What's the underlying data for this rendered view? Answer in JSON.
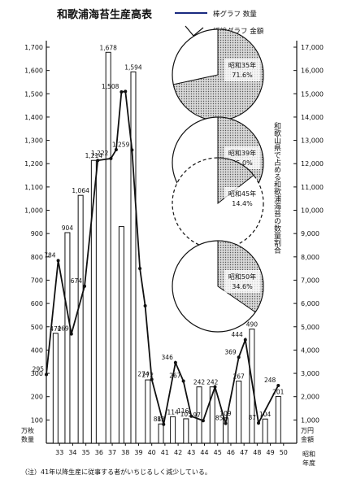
{
  "chart_data": {
    "type": "bar",
    "title": "和歌浦海苔生産高表",
    "legend": {
      "bar": "棒グラフ 数量",
      "line": "折線グラフ 金額"
    },
    "left_axis": {
      "unit_line1": "万枚",
      "unit_line2": "数量",
      "ylim": [
        0,
        1700
      ],
      "ticks": [
        "100",
        "200",
        "300",
        "400",
        "500",
        "600",
        "700",
        "800",
        "900",
        "1,000",
        "1,100",
        "1,200",
        "1,300",
        "1,400",
        "1,500",
        "1,600",
        "1,700"
      ]
    },
    "right_axis": {
      "unit_line1": "万円",
      "unit_line2": "金額",
      "ylim": [
        0,
        17000
      ],
      "ticks": [
        "1,000",
        "2,000",
        "3,000",
        "4,000",
        "5,000",
        "6,000",
        "7,000",
        "8,000",
        "9,000",
        "10,000",
        "11,000",
        "12,000",
        "13,000",
        "14,000",
        "15,000",
        "16,000",
        "17,000"
      ]
    },
    "x_axis_label": [
      "昭和",
      "年度"
    ],
    "categories": [
      "33",
      "34",
      "35",
      "36",
      "37",
      "38",
      "39",
      "40",
      "41",
      "42",
      "43",
      "44",
      "45",
      "46",
      "47",
      "48",
      "49",
      "50"
    ],
    "x_positions": [
      33,
      34,
      35,
      36,
      37,
      38,
      39,
      40,
      41,
      42,
      43,
      44,
      45,
      46,
      47,
      48,
      49,
      50
    ],
    "series": [
      {
        "name": "数量",
        "kind": "bar",
        "points": [
          {
            "x": 32.7,
            "v": 472,
            "label": "472"
          },
          {
            "x": 33.6,
            "v": 904,
            "label": "904"
          },
          {
            "x": 34.6,
            "v": 1064,
            "label": "1,064"
          },
          {
            "x": 35.6,
            "v": 1214,
            "label": "1,214"
          },
          {
            "x": 36.7,
            "v": 1678,
            "label": "1,678"
          },
          {
            "x": 37.7,
            "v": 930,
            "label": ""
          },
          {
            "x": 38.6,
            "v": 1594,
            "label": "1,594"
          },
          {
            "x": 39.7,
            "v": 272,
            "label": "272"
          },
          {
            "x": 40.7,
            "v": 83,
            "label": "83"
          },
          {
            "x": 41.6,
            "v": 114,
            "label": "114"
          },
          {
            "x": 42.6,
            "v": 105,
            "label": "105"
          },
          {
            "x": 43.6,
            "v": 242,
            "label": "242"
          },
          {
            "x": 44.6,
            "v": 242,
            "label": "242"
          },
          {
            "x": 45.6,
            "v": 109,
            "label": "109"
          },
          {
            "x": 46.6,
            "v": 267,
            "label": "267"
          },
          {
            "x": 47.6,
            "v": 490,
            "label": "490"
          },
          {
            "x": 48.6,
            "v": 104,
            "label": "104"
          },
          {
            "x": 49.6,
            "v": 201,
            "label": "201"
          }
        ]
      },
      {
        "name": "金額",
        "kind": "line",
        "points": [
          {
            "x": 32.0,
            "v": 2950,
            "label": "295"
          },
          {
            "x": 32.9,
            "v": 7840,
            "label": "784"
          },
          {
            "x": 33.9,
            "v": 4690,
            "label": "469"
          },
          {
            "x": 34.9,
            "v": 6740,
            "label": "674"
          },
          {
            "x": 35.9,
            "v": 12140,
            "label": ""
          },
          {
            "x": 36.9,
            "v": 12220,
            "label": "1,222"
          },
          {
            "x": 37.3,
            "v": 12600,
            "label": ""
          },
          {
            "x": 37.7,
            "v": 15080,
            "label": "1,508"
          },
          {
            "x": 38.0,
            "v": 15100,
            "label": ""
          },
          {
            "x": 38.5,
            "v": 12590,
            "label": "1,259"
          },
          {
            "x": 39.1,
            "v": 7500,
            "label": ""
          },
          {
            "x": 39.5,
            "v": 5900,
            "label": ""
          },
          {
            "x": 40.0,
            "v": 2740,
            "label": "274"
          },
          {
            "x": 40.9,
            "v": 810,
            "label": "81"
          },
          {
            "x": 41.8,
            "v": 3460,
            "label": "346"
          },
          {
            "x": 42.4,
            "v": 2670,
            "label": "267"
          },
          {
            "x": 43.0,
            "v": 1160,
            "label": "116"
          },
          {
            "x": 43.9,
            "v": 970,
            "label": "97"
          },
          {
            "x": 44.8,
            "v": 2420,
            "label": ""
          },
          {
            "x": 45.6,
            "v": 850,
            "label": "85"
          },
          {
            "x": 46.6,
            "v": 3690,
            "label": "369"
          },
          {
            "x": 47.1,
            "v": 4440,
            "label": "444"
          },
          {
            "x": 48.1,
            "v": 870,
            "label": "87"
          },
          {
            "x": 49.6,
            "v": 2480,
            "label": "248"
          }
        ]
      }
    ],
    "pie_block": {
      "title": "和歌山県で占める和歌浦海苔の数量割合",
      "pies": [
        {
          "year": "昭和35年",
          "percent": "71.6%",
          "share": 0.716
        },
        {
          "year": "昭和39年",
          "percent": "55.0%",
          "share": 0.55
        },
        {
          "year": "昭和45年",
          "percent": "14.4%",
          "share": 0.144
        },
        {
          "year": "昭和50年",
          "percent": "34.6%",
          "share": 0.346
        }
      ]
    },
    "note": "（注）41年以降生産に従事する者がいちじるしく減少している。"
  }
}
